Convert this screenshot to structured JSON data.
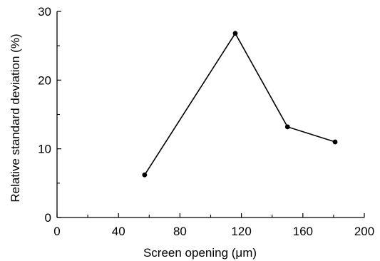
{
  "chart_data": {
    "type": "line",
    "title": "",
    "xlabel": "Screen opening (μm)",
    "ylabel": "Relative standard deviation (%)",
    "xlim": [
      0,
      200
    ],
    "ylim": [
      0,
      30
    ],
    "x_ticks": [
      0,
      40,
      80,
      120,
      160,
      200
    ],
    "x_tick_labels": [
      "0",
      "40",
      "80",
      "120",
      "160",
      "200"
    ],
    "y_ticks": [
      0,
      10,
      20,
      30
    ],
    "y_tick_labels": [
      "0",
      "10",
      "20",
      "30"
    ],
    "grid": false,
    "legend": "none",
    "series": [
      {
        "x": [
          57,
          116,
          150,
          181
        ],
        "y": [
          6.2,
          26.8,
          13.2,
          11.0
        ],
        "color": "#000000",
        "marker": "circle"
      }
    ]
  }
}
